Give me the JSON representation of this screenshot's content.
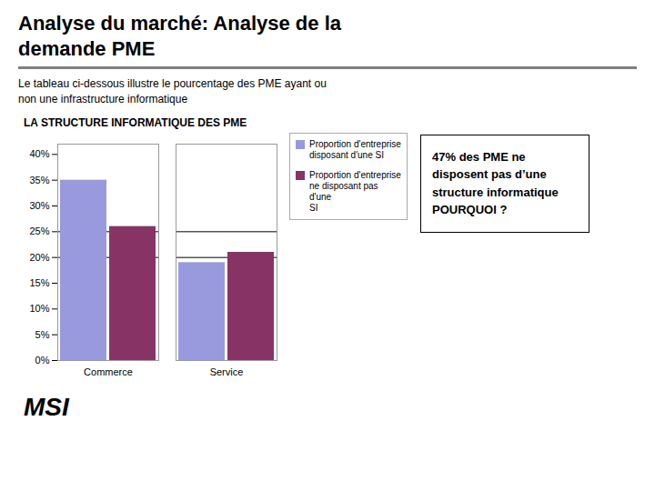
{
  "chart_data": {
    "type": "bar",
    "title": "Analyse du marché: Analyse de la\ndemande PME",
    "subtitle": "Le tableau ci-dessous illustre le pourcentage des PME ayant ou\nnon une infrastructure informatique",
    "categories": [
      "Commerce",
      "Service"
    ],
    "series": [
      {
        "name": "Proportion d'entreprise\ndisposant d'une SI",
        "color": "#9999DD",
        "values": [
          0.35,
          0.19
        ]
      },
      {
        "name": "Proportion d'entreprise\nne disposant pas d'une\nSI",
        "color": "#883366",
        "values": [
          0.26,
          0.21
        ]
      }
    ],
    "ylim": [
      0,
      0.42
    ],
    "yticks": [
      {
        "value": 0.0,
        "label": "0%"
      },
      {
        "value": 0.05,
        "label": "5%"
      },
      {
        "value": 0.1,
        "label": "10%"
      },
      {
        "value": 0.15,
        "label": "15%"
      },
      {
        "value": 0.2,
        "label": "20%"
      },
      {
        "value": 0.25,
        "label": "25%"
      },
      {
        "value": 0.3,
        "label": "30%"
      },
      {
        "value": 0.35,
        "label": "35%"
      },
      {
        "value": 0.4,
        "label": "40%"
      }
    ],
    "hlines": [
      0.2,
      0.25
    ],
    "legend": "upper right",
    "annotations": [
      "LA STRUCTURE INFORMATIQUE DES PME",
      "47% des PME ne\ndisposent pas d’une\nstructure informatique\nPOURQUOI ?",
      "MSI"
    ]
  }
}
